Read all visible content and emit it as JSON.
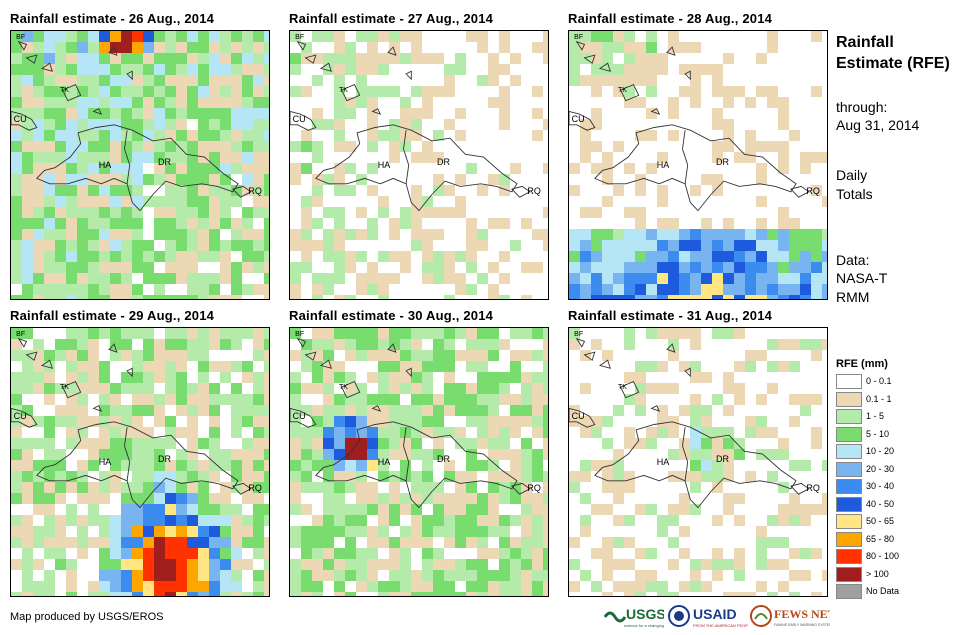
{
  "panels": [
    {
      "title": "Rainfall estimate - 26 Aug., 2014",
      "day": 26
    },
    {
      "title": "Rainfall estimate - 27 Aug., 2014",
      "day": 27
    },
    {
      "title": "Rainfall estimate - 28 Aug., 2014",
      "day": 28
    },
    {
      "title": "Rainfall estimate - 29 Aug., 2014",
      "day": 29
    },
    {
      "title": "Rainfall estimate - 30 Aug., 2014",
      "day": 30
    },
    {
      "title": "Rainfall estimate - 31 Aug., 2014",
      "day": 31
    }
  ],
  "places": [
    "BF",
    "TK",
    "CU",
    "HA",
    "DR",
    "RQ"
  ],
  "sidebar": {
    "title": "Rainfall Estimate (RFE)",
    "through_label": "through:",
    "through_date": "Aug 31, 2014",
    "totals": "Daily Totals",
    "data_label": "Data:",
    "data_source": "NASA-TRMM"
  },
  "legend": {
    "title": "RFE (mm)",
    "items": [
      {
        "label": "0 - 0.1",
        "color": "#ffffff"
      },
      {
        "label": "0.1 - 1",
        "color": "#ecd8b4"
      },
      {
        "label": "1 - 5",
        "color": "#b4ebaa"
      },
      {
        "label": "5 - 10",
        "color": "#78dc6e"
      },
      {
        "label": "10 - 20",
        "color": "#b4e6f5"
      },
      {
        "label": "20 - 30",
        "color": "#78b4f0"
      },
      {
        "label": "30 - 40",
        "color": "#3c8cf0"
      },
      {
        "label": "40 - 50",
        "color": "#1e5adc"
      },
      {
        "label": "50 - 65",
        "color": "#ffe682"
      },
      {
        "label": "65 - 80",
        "color": "#ffa500"
      },
      {
        "label": "80 - 100",
        "color": "#ff3200"
      },
      {
        "label": "> 100",
        "color": "#a01e1e"
      },
      {
        "label": "No Data",
        "color": "#a0a0a0"
      }
    ]
  },
  "credit": "Map produced by USGS/EROS",
  "logos": [
    "USGS",
    "USAID",
    "FEWS NET"
  ],
  "colors": {
    "usgs": "#1b6b3a",
    "usaid": "#1a3a8a",
    "fews": "#b5461b"
  }
}
